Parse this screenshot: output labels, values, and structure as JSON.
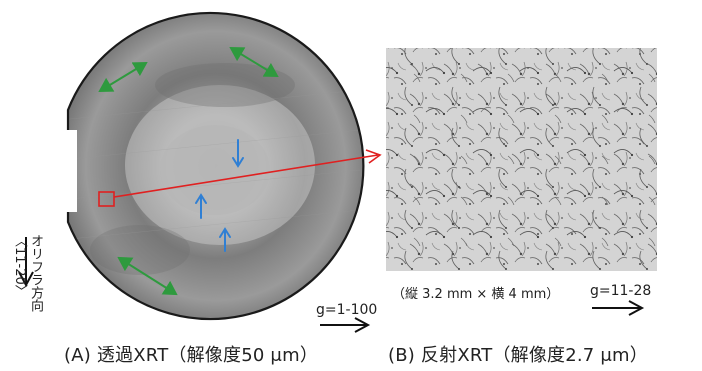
{
  "captions": {
    "a": "(A) 透過XRT（解像度50 μm）",
    "b": "(B) 反射XRT（解像度2.7 μm）"
  },
  "labels": {
    "g_a": "g=1-100",
    "g_b": "g=11-28",
    "size_note": "（縦 3.2 mm × 横 4 mm）",
    "orientation_flat_line1": "オリフラ方向",
    "orientation_flat_line2": "〈11-20〉"
  },
  "colors": {
    "wafer_edge": "#1a1a1a",
    "wafer_gray": "#8f8f8f",
    "green_arrow": "#2e9a3e",
    "blue_arrow": "#2f7fd4",
    "red_callout": "#e02020",
    "text": "#222222"
  },
  "icons": {
    "green": "double-headed-arrow-icon",
    "blue": "single-arrow-icon",
    "g_vector": "long-arrow-right-icon",
    "flat": "arrow-down-icon"
  }
}
